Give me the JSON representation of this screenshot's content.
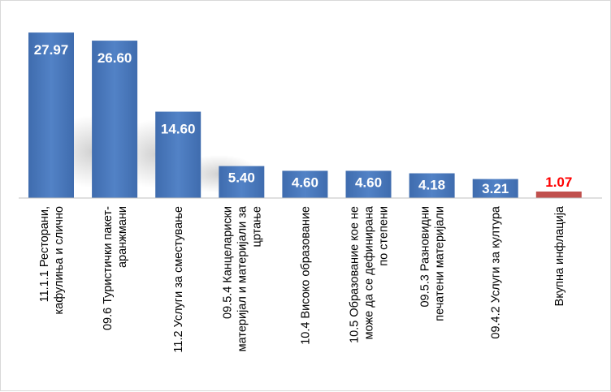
{
  "chart_data": {
    "type": "bar",
    "categories": [
      [
        "11.1.1 Ресторани,",
        "кафулиња и слично"
      ],
      [
        "09.6 Туристички пакет-",
        "аранжмани"
      ],
      [
        "11.2 Услуги за сместување"
      ],
      [
        "09.5.4 Канцелариски",
        "материјал и материјали за",
        "цртање"
      ],
      [
        "10.4 Високо образование"
      ],
      [
        "10.5 Образование кое не",
        "може да се дефинирана",
        "по степени"
      ],
      [
        "09.5.3 Разновидни",
        "печатени материјали"
      ],
      [
        "09.4.2 Услуги за култура"
      ],
      [
        "Вкупна инфлација"
      ]
    ],
    "values": [
      27.97,
      26.6,
      14.6,
      5.4,
      4.6,
      4.6,
      4.18,
      3.21,
      1.07
    ],
    "value_labels": [
      "27.97",
      "26.60",
      "14.60",
      "5.40",
      "4.60",
      "4.60",
      "4.18",
      "3.21",
      "1.07"
    ],
    "ylim": [
      0,
      30
    ],
    "grid": false,
    "legend": "none",
    "colors": {
      "bar": "#4a77b9",
      "bar_dark": "#365f99",
      "highlight_bar": "#c0504d",
      "label_on_bar": "#ffffff",
      "highlight_label": "#ff0000",
      "axis": "#bfbfbf"
    },
    "highlight_index": 8
  }
}
